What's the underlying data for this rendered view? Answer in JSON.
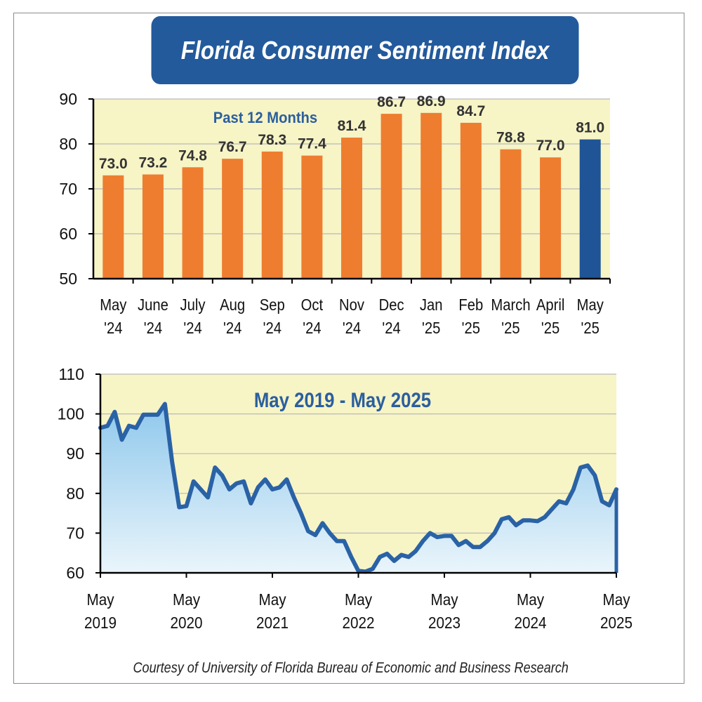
{
  "title": "Florida Consumer Sentiment Index",
  "credit": "Courtesy of University of Florida Bureau of Economic and Business Research",
  "colors": {
    "banner": "#235a9b",
    "bar": "#ee7d30",
    "bar_highlight": "#1f5596",
    "plot_bg": "#f7f4c6",
    "line": "#2a62a6",
    "area_top": "#8fc8ec",
    "area_bottom": "#eaf5fb"
  },
  "chart_data": [
    {
      "type": "bar",
      "title": "Past 12 Months",
      "categories": [
        [
          "May",
          "'24"
        ],
        [
          "June",
          "'24"
        ],
        [
          "July",
          "'24"
        ],
        [
          "Aug",
          "'24"
        ],
        [
          "Sep",
          "'24"
        ],
        [
          "Oct",
          "'24"
        ],
        [
          "Nov",
          "'24"
        ],
        [
          "Dec",
          "'24"
        ],
        [
          "Jan",
          "'25"
        ],
        [
          "Feb",
          "'25"
        ],
        [
          "March",
          "'25"
        ],
        [
          "April",
          "'25"
        ],
        [
          "May",
          "'25"
        ]
      ],
      "values": [
        73.0,
        73.2,
        74.8,
        76.7,
        78.3,
        77.4,
        81.4,
        86.7,
        86.9,
        84.7,
        78.8,
        77.0,
        81.0
      ],
      "labels": [
        "73.0",
        "73.2",
        "74.8",
        "76.7",
        "78.3",
        "77.4",
        "81.4",
        "86.7",
        "86.9",
        "84.7",
        "78.8",
        "77.0",
        "81.0"
      ],
      "highlight_index": 12,
      "ylim": [
        50,
        90
      ],
      "yticks": [
        50,
        60,
        70,
        80,
        90
      ],
      "xlabel": "",
      "ylabel": ""
    },
    {
      "type": "area",
      "title": "May 2019 - May 2025",
      "x_labels": [
        [
          "May",
          "2019"
        ],
        [
          "May",
          "2020"
        ],
        [
          "May",
          "2021"
        ],
        [
          "May",
          "2022"
        ],
        [
          "May",
          "2023"
        ],
        [
          "May",
          "2024"
        ],
        [
          "May",
          "2025"
        ]
      ],
      "x_start": "May 2019",
      "x_end": "May 2025",
      "values": [
        96.5,
        97,
        100.5,
        93.5,
        97,
        96.5,
        99.8,
        99.8,
        99.8,
        102.5,
        88,
        76.5,
        76.8,
        83,
        81,
        79,
        86.5,
        84.5,
        81,
        82.5,
        83,
        77.5,
        81.5,
        83.5,
        81,
        81.5,
        83.5,
        79,
        75,
        70.5,
        69.5,
        72.5,
        70,
        68,
        68,
        64,
        60.5,
        60.3,
        61,
        64,
        64.8,
        63,
        64.5,
        64,
        65.5,
        68,
        70,
        69,
        69.3,
        69.3,
        67,
        68,
        66.5,
        66.5,
        68,
        70,
        73.5,
        74,
        72,
        73.2,
        73.2,
        73,
        74,
        76,
        78,
        77.5,
        81,
        86.5,
        87,
        84.5,
        78,
        77,
        81
      ],
      "ylim": [
        60,
        110
      ],
      "yticks": [
        60,
        70,
        80,
        90,
        100,
        110
      ],
      "xlabel": "",
      "ylabel": ""
    }
  ]
}
